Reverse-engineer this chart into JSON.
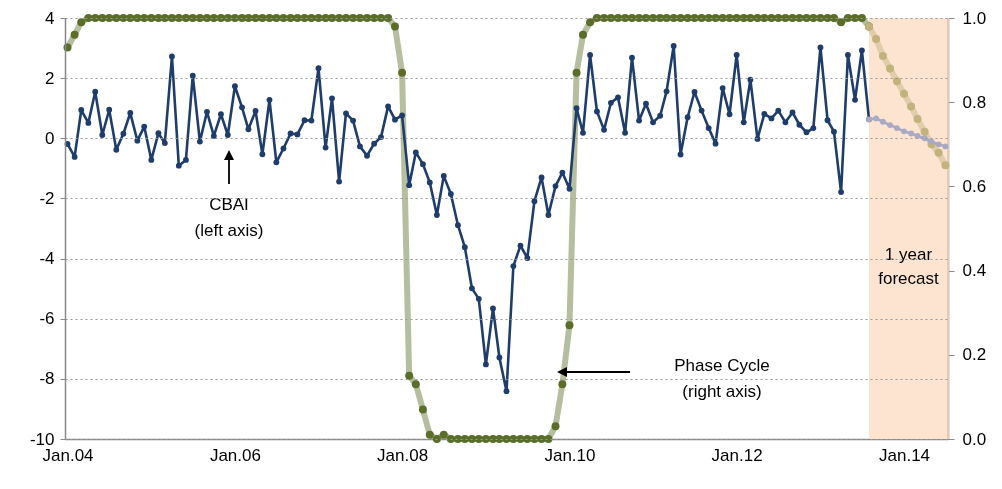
{
  "chart_data": {
    "type": "line",
    "x": [
      "2004-01",
      "2004-02",
      "2004-03",
      "2004-04",
      "2004-05",
      "2004-06",
      "2004-07",
      "2004-08",
      "2004-09",
      "2004-10",
      "2004-11",
      "2004-12",
      "2005-01",
      "2005-02",
      "2005-03",
      "2005-04",
      "2005-05",
      "2005-06",
      "2005-07",
      "2005-08",
      "2005-09",
      "2005-10",
      "2005-11",
      "2005-12",
      "2006-01",
      "2006-02",
      "2006-03",
      "2006-04",
      "2006-05",
      "2006-06",
      "2006-07",
      "2006-08",
      "2006-09",
      "2006-10",
      "2006-11",
      "2006-12",
      "2007-01",
      "2007-02",
      "2007-03",
      "2007-04",
      "2007-05",
      "2007-06",
      "2007-07",
      "2007-08",
      "2007-09",
      "2007-10",
      "2007-11",
      "2007-12",
      "2008-01",
      "2008-02",
      "2008-03",
      "2008-04",
      "2008-05",
      "2008-06",
      "2008-07",
      "2008-08",
      "2008-09",
      "2008-10",
      "2008-11",
      "2008-12",
      "2009-01",
      "2009-02",
      "2009-03",
      "2009-04",
      "2009-05",
      "2009-06",
      "2009-07",
      "2009-08",
      "2009-09",
      "2009-10",
      "2009-11",
      "2009-12",
      "2010-01",
      "2010-02",
      "2010-03",
      "2010-04",
      "2010-05",
      "2010-06",
      "2010-07",
      "2010-08",
      "2010-09",
      "2010-10",
      "2010-11",
      "2010-12",
      "2011-01",
      "2011-02",
      "2011-03",
      "2011-04",
      "2011-05",
      "2011-06",
      "2011-07",
      "2011-08",
      "2011-09",
      "2011-10",
      "2011-11",
      "2011-12",
      "2012-01",
      "2012-02",
      "2012-03",
      "2012-04",
      "2012-05",
      "2012-06",
      "2012-07",
      "2012-08",
      "2012-09",
      "2012-10",
      "2012-11",
      "2012-12",
      "2013-01",
      "2013-02",
      "2013-03",
      "2013-04",
      "2013-05",
      "2013-06",
      "2013-07",
      "2013-08"
    ],
    "series": [
      {
        "axis": "y2",
        "color": "#5a6e2a",
        "values": [
          0.93,
          0.96,
          0.99,
          1,
          1,
          1,
          1,
          1,
          1,
          1,
          1,
          1,
          1,
          1,
          1,
          1,
          1,
          1,
          1,
          1,
          1,
          1,
          1,
          1,
          1,
          1,
          1,
          1,
          1,
          1,
          1,
          1,
          1,
          1,
          1,
          1,
          1,
          1,
          1,
          1,
          1,
          1,
          1,
          1,
          1,
          1,
          1,
          0.98,
          0.87,
          0.15,
          0.13,
          0.07,
          0.01,
          0,
          0.01,
          0,
          0,
          0,
          0,
          0,
          0,
          0,
          0,
          0,
          0,
          0,
          0,
          0,
          0,
          0,
          0.03,
          0.13,
          0.27,
          0.87,
          0.96,
          0.99,
          1,
          1,
          1,
          1,
          1,
          1,
          1,
          1,
          1,
          1,
          1,
          1,
          1,
          1,
          1,
          1,
          1,
          1,
          1,
          1,
          1,
          1,
          1,
          1,
          1,
          1,
          1,
          1,
          1,
          1,
          1,
          1,
          1,
          1,
          1,
          0.99,
          1,
          1,
          1,
          0.98
        ]
      },
      {
        "axis": "y2",
        "color": "#c2b27e",
        "x": [
          "2013-08",
          "2013-09",
          "2013-10",
          "2013-11",
          "2013-12",
          "2014-01",
          "2014-02",
          "2014-03",
          "2014-04",
          "2014-05",
          "2014-06",
          "2014-07"
        ],
        "values": [
          0.98,
          0.95,
          0.91,
          0.88,
          0.85,
          0.82,
          0.79,
          0.76,
          0.73,
          0.7,
          0.68,
          0.65
        ]
      },
      {
        "color": "#1f3d6b",
        "values": [
          -0.19,
          -0.62,
          0.94,
          0.51,
          1.55,
          0.11,
          0.95,
          -0.38,
          0.15,
          0.84,
          -0.08,
          0.39,
          -0.72,
          0.17,
          -0.16,
          2.72,
          -0.91,
          -0.72,
          2.08,
          -0.11,
          0.88,
          0.08,
          0.8,
          0.11,
          1.73,
          1.03,
          0.3,
          0.91,
          -0.53,
          1.28,
          -0.8,
          -0.34,
          0.16,
          0.13,
          0.6,
          0.59,
          2.33,
          -0.31,
          1.33,
          -1.44,
          0.83,
          0.59,
          -0.27,
          -0.58,
          -0.18,
          0.04,
          1.06,
          0.62,
          0.76,
          -1.56,
          -0.47,
          -0.86,
          -1.47,
          -2.55,
          -1.25,
          -1.85,
          -2.89,
          -3.62,
          -4.99,
          -5.34,
          -7.52,
          -5.66,
          -7.29,
          -8.41,
          -4.25,
          -3.57,
          -3.98,
          -2.09,
          -1.3,
          -2.55,
          -1.59,
          -1.14,
          -1.68,
          1.0,
          0.18,
          2.77,
          0.89,
          0.28,
          1.18,
          1.36,
          0.18,
          2.68,
          0.59,
          1.15,
          0.53,
          0.75,
          1.56,
          3.07,
          -0.54,
          0.7,
          1.54,
          0.92,
          0.34,
          -0.18,
          1.67,
          0.8,
          2.77,
          0.53,
          1.95,
          -0.02,
          0.81,
          0.66,
          0.92,
          0.53,
          0.86,
          0.45,
          0.2,
          0.34,
          3.02,
          0.6,
          0.22,
          -1.79,
          2.77,
          1.28,
          2.92,
          0.63
        ]
      },
      {
        "color": "#a9a9c4",
        "x": [
          "2013-08",
          "2013-09",
          "2013-10",
          "2013-11",
          "2013-12",
          "2014-01",
          "2014-02",
          "2014-03",
          "2014-04",
          "2014-05",
          "2014-06",
          "2014-07"
        ],
        "values": [
          0.63,
          0.66,
          0.55,
          0.44,
          0.34,
          0.23,
          0.16,
          0.08,
          0.0,
          -0.11,
          -0.2,
          -0.27
        ]
      }
    ],
    "xlim": [
      "2003-12-21",
      "2014-07-12"
    ],
    "xticks": [
      {
        "value": "2004-01",
        "label": "Jan.04"
      },
      {
        "value": "2006-01",
        "label": "Jan.06"
      },
      {
        "value": "2008-01",
        "label": "Jan.08"
      },
      {
        "value": "2010-01",
        "label": "Jan.10"
      },
      {
        "value": "2012-01",
        "label": "Jan.12"
      },
      {
        "value": "2014-01",
        "label": "Jan.14"
      }
    ],
    "ylim": [
      -10,
      4
    ],
    "yticks": [
      -10,
      -8,
      -6,
      -4,
      -2,
      0,
      2,
      4
    ],
    "y2lim": [
      0,
      1
    ],
    "y2ticks": [
      {
        "value": 0,
        "label": "0.0"
      },
      {
        "value": 0.2,
        "label": "0.2"
      },
      {
        "value": 0.4,
        "label": "0.4"
      },
      {
        "value": 0.6,
        "label": "0.6"
      },
      {
        "value": 0.8,
        "label": "0.8"
      },
      {
        "value": 1,
        "label": "1.0"
      }
    ],
    "bands": [
      {
        "axis": "x",
        "from": "2013-08",
        "to": "2014-07-12",
        "label": "1 year\nforecast",
        "color": "#fde4d0"
      }
    ],
    "annotations": [
      "CBAI\n(left axis)",
      "Phase Cycle\n(right axis)"
    ],
    "grid": "y",
    "marker": "circle"
  }
}
